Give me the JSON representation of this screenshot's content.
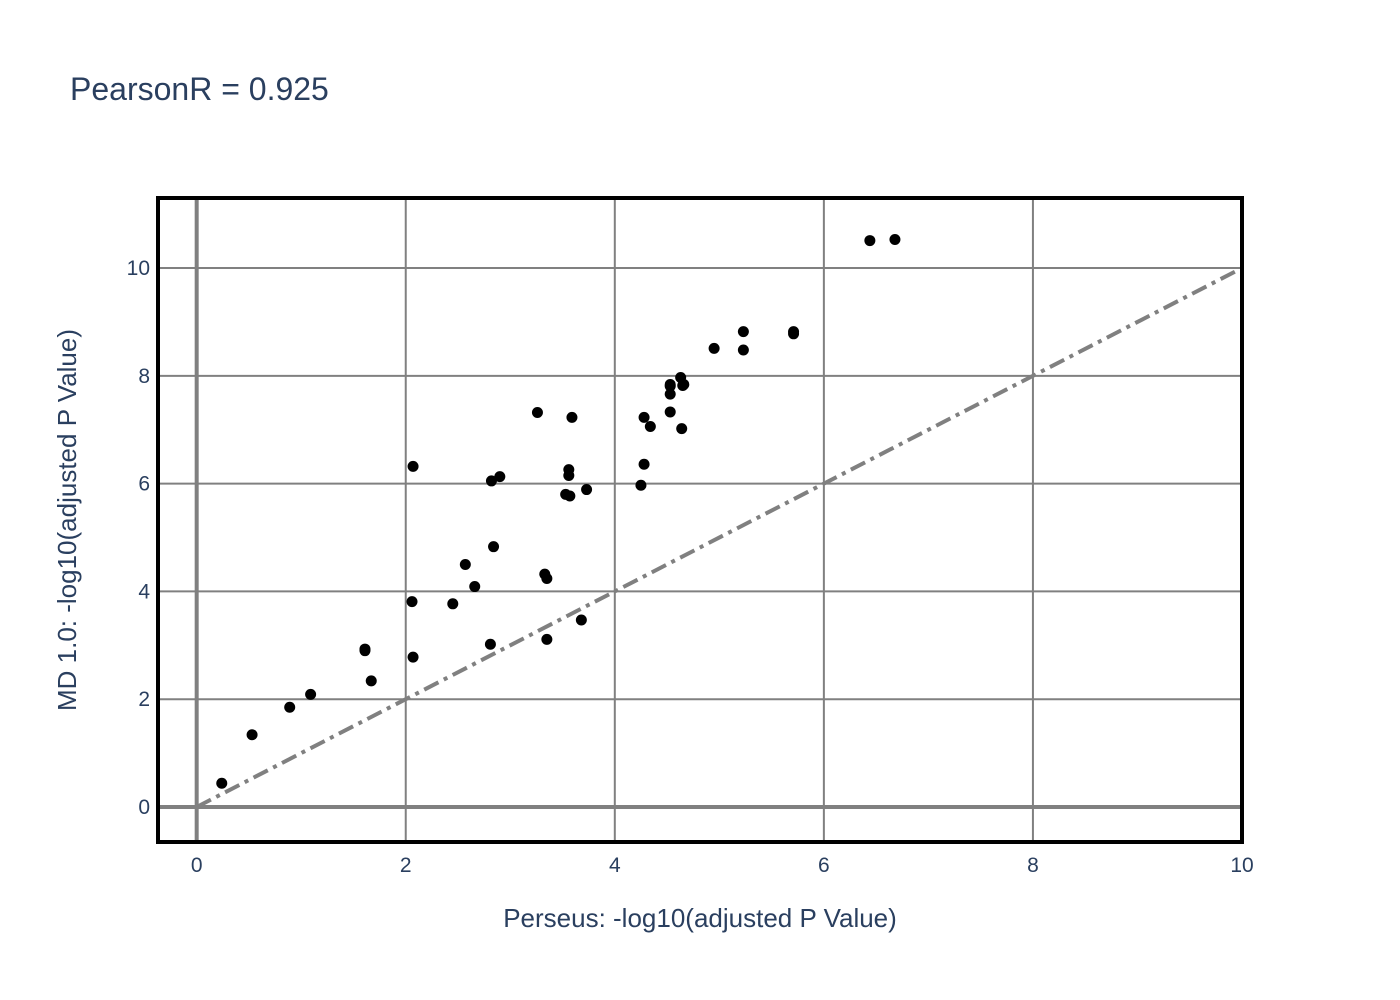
{
  "chart_data": {
    "type": "scatter",
    "title": "PearsonR = 0.925",
    "xlabel": "Perseus: -log10(adjusted P Value)",
    "ylabel": "MD 1.0: -log10(adjusted P Value)",
    "xlim": [
      -0.37,
      10
    ],
    "ylim": [
      -0.65,
      11.3
    ],
    "xticks": [
      0,
      2,
      4,
      6,
      8,
      10
    ],
    "yticks": [
      0,
      2,
      4,
      6,
      8,
      10
    ],
    "grid": true,
    "reference_line": {
      "style": "dash-dot",
      "color": "#808080",
      "x": [
        0,
        10
      ],
      "y": [
        0,
        10
      ]
    },
    "marker_color": "#000000",
    "x": [
      0.24,
      0.53,
      0.89,
      1.09,
      1.61,
      1.61,
      1.67,
      2.06,
      2.07,
      2.07,
      2.45,
      2.57,
      2.66,
      2.81,
      2.82,
      2.84,
      2.9,
      3.26,
      3.33,
      3.35,
      3.35,
      3.53,
      3.56,
      3.56,
      3.57,
      3.59,
      3.68,
      3.73,
      4.25,
      4.28,
      4.28,
      4.34,
      4.53,
      4.53,
      4.53,
      4.53,
      4.63,
      4.64,
      4.65,
      4.66,
      4.95,
      5.23,
      5.23,
      5.71,
      5.71,
      6.44,
      6.68
    ],
    "y": [
      0.44,
      1.34,
      1.85,
      2.09,
      2.9,
      2.93,
      2.34,
      3.81,
      2.78,
      6.32,
      3.77,
      4.5,
      4.09,
      3.02,
      6.05,
      4.83,
      6.13,
      7.32,
      4.32,
      4.24,
      3.11,
      5.8,
      6.26,
      6.15,
      5.77,
      7.23,
      3.47,
      5.89,
      5.97,
      7.23,
      6.36,
      7.06,
      7.33,
      7.66,
      7.81,
      7.84,
      7.97,
      7.02,
      7.82,
      7.84,
      8.51,
      8.82,
      8.48,
      8.82,
      8.78,
      10.51,
      10.53
    ]
  }
}
